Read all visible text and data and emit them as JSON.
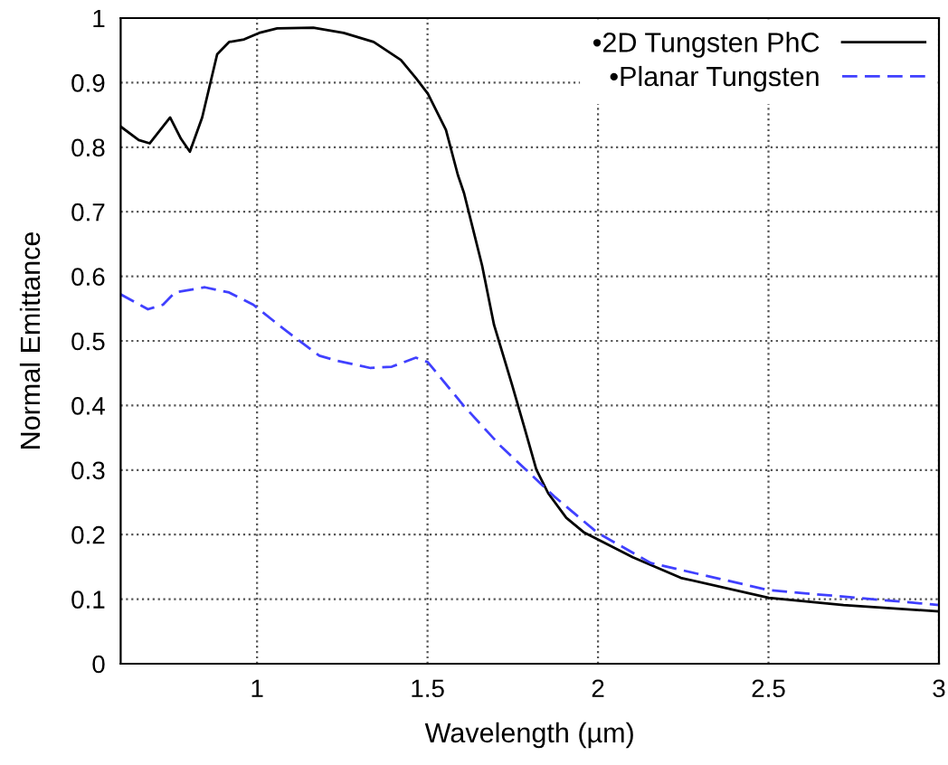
{
  "chart_data": {
    "type": "line",
    "xlabel": "Wavelength (µm)",
    "ylabel": "Normal Emittance",
    "xlim": [
      0.6,
      3
    ],
    "ylim": [
      0,
      1
    ],
    "xticks": [
      1,
      1.5,
      2,
      2.5,
      3
    ],
    "yticks": [
      0,
      0.1,
      0.2,
      0.3,
      0.4,
      0.5,
      0.6,
      0.7,
      0.8,
      0.9,
      1
    ],
    "grid": true,
    "legend": "top right",
    "marker": "none",
    "series": [
      {
        "name": "•2D Tungsten PhC",
        "color": "#000000",
        "line_style": "solid",
        "x": [
          0.6,
          0.653,
          0.685,
          0.745,
          0.777,
          0.803,
          0.839,
          0.883,
          0.918,
          0.962,
          1.006,
          1.059,
          1.165,
          1.254,
          1.342,
          1.422,
          1.466,
          1.501,
          1.554,
          1.589,
          1.607,
          1.66,
          1.695,
          1.748,
          1.784,
          1.819,
          1.854,
          1.907,
          1.96,
          1.998,
          2.102,
          2.243,
          2.501,
          2.72,
          3.0
        ],
        "values": [
          0.832,
          0.811,
          0.806,
          0.846,
          0.813,
          0.793,
          0.846,
          0.944,
          0.963,
          0.967,
          0.977,
          0.984,
          0.985,
          0.977,
          0.963,
          0.935,
          0.907,
          0.883,
          0.827,
          0.757,
          0.729,
          0.617,
          0.525,
          0.432,
          0.366,
          0.301,
          0.264,
          0.226,
          0.203,
          0.193,
          0.165,
          0.133,
          0.102,
          0.091,
          0.081
        ]
      },
      {
        "name": "•Planar Tungsten",
        "color": "#4040ff",
        "line_style": "dashed",
        "x": [
          0.6,
          0.68,
          0.724,
          0.759,
          0.847,
          0.918,
          0.989,
          1.077,
          1.183,
          1.236,
          1.333,
          1.395,
          1.466,
          1.501,
          1.607,
          1.713,
          1.872,
          1.998,
          2.155,
          2.501,
          3.0
        ],
        "values": [
          0.572,
          0.549,
          0.556,
          0.575,
          0.583,
          0.575,
          0.556,
          0.519,
          0.477,
          0.469,
          0.458,
          0.46,
          0.474,
          0.467,
          0.399,
          0.338,
          0.259,
          0.203,
          0.156,
          0.114,
          0.091
        ]
      }
    ]
  }
}
